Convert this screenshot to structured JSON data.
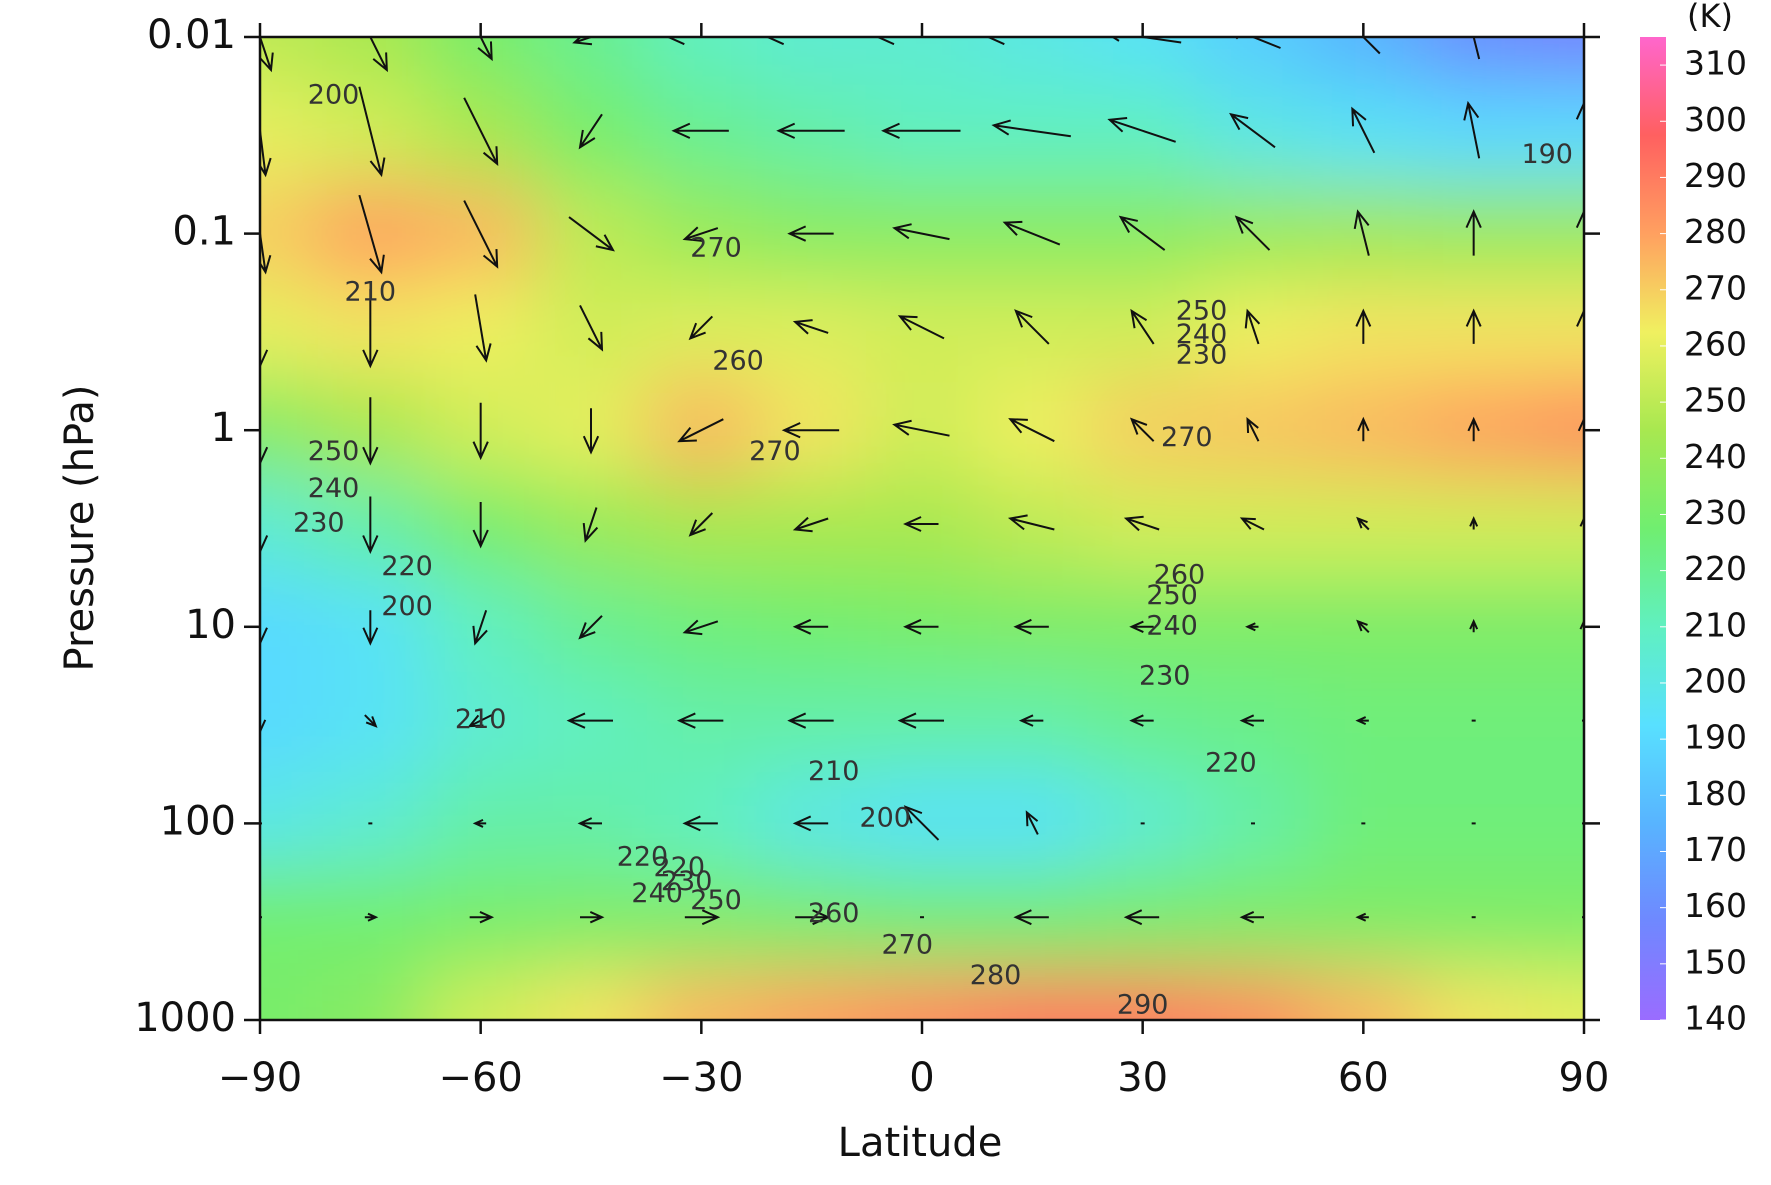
{
  "chart_data": {
    "type": "contour",
    "xlabel": "Latitude",
    "ylabel": "Pressure (hPa)",
    "xlim": [
      -90,
      90
    ],
    "xticks": [
      {
        "value": -90,
        "label": "−90"
      },
      {
        "value": -60,
        "label": "−60"
      },
      {
        "value": -30,
        "label": "−30"
      },
      0,
      30,
      60,
      90
    ],
    "ylim": [
      1000,
      0.01
    ],
    "yticks": [
      0.01,
      0.1,
      1,
      10,
      100,
      1000
    ],
    "yscale": "log",
    "colorbar_label": "(K)",
    "clim": [
      140,
      315
    ],
    "cticks": [
      140,
      150,
      160,
      170,
      180,
      190,
      200,
      210,
      220,
      230,
      240,
      250,
      260,
      270,
      280,
      290,
      300,
      310
    ],
    "colormap": [
      "#9a6cff",
      "#6f88ff",
      "#58b4ff",
      "#58e0ff",
      "#60f0c0",
      "#70ee70",
      "#a8e850",
      "#f0f060",
      "#ffa060",
      "#ff6060",
      "#ff66cc"
    ],
    "x": [
      -90,
      -75,
      -60,
      -45,
      -30,
      -15,
      0,
      15,
      30,
      45,
      60,
      75,
      90
    ],
    "levels": [
      1000,
      300,
      100,
      30,
      10,
      3,
      1,
      0.3,
      0.1,
      0.03,
      0.01
    ],
    "z": [
      [
        230,
        235,
        255,
        265,
        275,
        280,
        285,
        290,
        290,
        285,
        275,
        265,
        260
      ],
      [
        228,
        228,
        230,
        232,
        232,
        230,
        228,
        228,
        230,
        232,
        232,
        232,
        232
      ],
      [
        200,
        205,
        215,
        215,
        210,
        200,
        195,
        195,
        205,
        215,
        225,
        225,
        225
      ],
      [
        190,
        195,
        205,
        210,
        215,
        215,
        215,
        215,
        220,
        222,
        225,
        225,
        225
      ],
      [
        190,
        195,
        210,
        220,
        225,
        228,
        230,
        232,
        232,
        232,
        232,
        232,
        232
      ],
      [
        205,
        215,
        230,
        240,
        245,
        245,
        245,
        250,
        255,
        255,
        255,
        255,
        255
      ],
      [
        235,
        245,
        255,
        260,
        275,
        265,
        255,
        262,
        270,
        272,
        275,
        280,
        285
      ],
      [
        260,
        265,
        262,
        255,
        258,
        258,
        255,
        255,
        255,
        262,
        265,
        265,
        265
      ],
      [
        270,
        280,
        275,
        250,
        240,
        235,
        235,
        235,
        235,
        240,
        242,
        240,
        240
      ],
      [
        260,
        255,
        245,
        230,
        220,
        215,
        210,
        210,
        210,
        200,
        195,
        190,
        190
      ],
      [
        250,
        245,
        230,
        220,
        210,
        205,
        205,
        200,
        195,
        185,
        175,
        160,
        155
      ]
    ],
    "vectors": {
      "u": [
        [
          0,
          0,
          0,
          0,
          0,
          0,
          0,
          0,
          0,
          0,
          0,
          0,
          0
        ],
        [
          0,
          1,
          2,
          2,
          3,
          3,
          0,
          -3,
          -3,
          -2,
          -1,
          0,
          0
        ],
        [
          0,
          0,
          -1,
          -2,
          -3,
          -3,
          -3,
          -1,
          0,
          0,
          0,
          0,
          0
        ],
        [
          0,
          1,
          -2,
          -4,
          -4,
          -4,
          -4,
          -2,
          -2,
          -2,
          -1,
          0,
          0
        ],
        [
          0,
          0,
          -1,
          -2,
          -3,
          -3,
          -3,
          -3,
          -2,
          -1,
          -1,
          0,
          0
        ],
        [
          0,
          0,
          0,
          -1,
          -2,
          -3,
          -3,
          -4,
          -3,
          -2,
          -1,
          0,
          0
        ],
        [
          0,
          0,
          0,
          0,
          -4,
          -5,
          -5,
          -4,
          -2,
          -1,
          0,
          0,
          0
        ],
        [
          0,
          0,
          1,
          2,
          -2,
          -3,
          -4,
          -3,
          -2,
          -1,
          0,
          0,
          0
        ],
        [
          1,
          2,
          3,
          4,
          -3,
          -4,
          -5,
          -5,
          -4,
          -3,
          -1,
          0,
          0
        ],
        [
          1,
          2,
          3,
          -2,
          -5,
          -6,
          -7,
          -7,
          -6,
          -4,
          -2,
          -1,
          0
        ],
        [
          2,
          3,
          2,
          -3,
          -6,
          -8,
          -8,
          -8,
          -7,
          -5,
          -3,
          -1,
          0
        ]
      ],
      "v": [
        [
          0,
          0,
          0,
          0,
          0,
          0,
          0,
          0,
          0,
          0,
          0,
          0,
          0
        ],
        [
          0,
          0,
          0,
          0,
          0,
          0,
          0,
          0,
          0,
          0,
          0,
          0,
          0
        ],
        [
          0,
          0,
          0,
          0,
          0,
          0,
          3,
          2,
          0,
          0,
          0,
          0,
          0
        ],
        [
          -2,
          -1,
          -1,
          0,
          0,
          0,
          0,
          0,
          0,
          0,
          0,
          0,
          0
        ],
        [
          -3,
          -3,
          -3,
          -2,
          -1,
          0,
          0,
          0,
          0,
          0,
          1,
          1,
          1
        ],
        [
          -5,
          -5,
          -4,
          -3,
          -2,
          -1,
          0,
          1,
          1,
          1,
          1,
          1,
          1
        ],
        [
          -6,
          -6,
          -5,
          -4,
          -2,
          0,
          1,
          2,
          2,
          2,
          2,
          2,
          2
        ],
        [
          -7,
          -7,
          -6,
          -4,
          -2,
          1,
          2,
          3,
          3,
          3,
          3,
          3,
          3
        ],
        [
          -7,
          -7,
          -6,
          -3,
          -1,
          0,
          1,
          2,
          3,
          3,
          4,
          4,
          4
        ],
        [
          -8,
          -8,
          -6,
          -3,
          0,
          0,
          0,
          1,
          2,
          3,
          4,
          5,
          5
        ],
        [
          -6,
          -6,
          -4,
          -1,
          0,
          0,
          0,
          0,
          1,
          2,
          3,
          4,
          4
        ]
      ]
    },
    "contour_labels": [
      200,
      210,
      270,
      250,
      240,
      230,
      220,
      200,
      210,
      260,
      220,
      210,
      200,
      220,
      230,
      240,
      250,
      260,
      270,
      280,
      290,
      270,
      260,
      250,
      240,
      230,
      220,
      190,
      250,
      240,
      230,
      270
    ]
  }
}
